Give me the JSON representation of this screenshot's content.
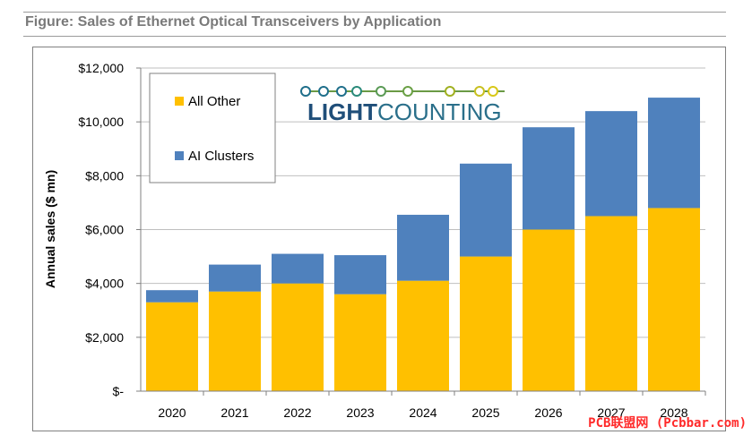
{
  "figure_title": "Figure: Sales of Ethernet Optical Transceivers by Application",
  "logo_text": "LIGHTCOUNTING",
  "watermark": "PCB联盟网 (Pcbbar.com)",
  "colors": {
    "all_other": "#FFC000",
    "ai_clusters": "#4F81BD",
    "grid": "#BFBFBF"
  },
  "chart_data": {
    "type": "bar",
    "stacked": true,
    "categories": [
      "2020",
      "2021",
      "2022",
      "2023",
      "2024",
      "2025",
      "2026",
      "2027",
      "2028"
    ],
    "series": [
      {
        "name": "All Other",
        "values": [
          3300,
          3700,
          4000,
          3600,
          4100,
          5000,
          6000,
          6500,
          6800
        ]
      },
      {
        "name": "AI Clusters",
        "values": [
          450,
          1000,
          1100,
          1450,
          2450,
          3450,
          3800,
          3900,
          4100
        ]
      }
    ],
    "yticks": [
      "$-",
      "$2,000",
      "$4,000",
      "$6,000",
      "$8,000",
      "$10,000",
      "$12,000"
    ],
    "ylabel": "Annual sales ($ mn)",
    "ylim": [
      0,
      12000
    ],
    "grid": true,
    "legend_placement": "top-left"
  }
}
